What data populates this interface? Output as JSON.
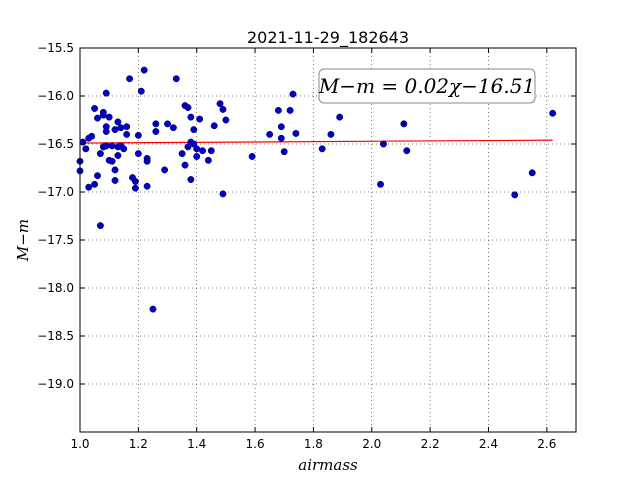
{
  "chart_data": {
    "type": "scatter",
    "title": "2021-11-29_182643",
    "xlabel": "airmass",
    "ylabel": "M−m",
    "xlim": [
      1.0,
      2.7
    ],
    "ylim": [
      -15.5,
      -19.5
    ],
    "y_inverted": true,
    "grid": true,
    "x_ticks": [
      1.0,
      1.2,
      1.4,
      1.6,
      1.8,
      2.0,
      2.2,
      2.4,
      2.6
    ],
    "x_tick_labels": [
      "1.0",
      "1.2",
      "1.4",
      "1.6",
      "1.8",
      "2.0",
      "2.2",
      "2.4",
      "2.6"
    ],
    "y_ticks": [
      -15.5,
      -16.0,
      -16.5,
      -17.0,
      -17.5,
      -18.0,
      -18.5,
      -19.0
    ],
    "y_tick_labels": [
      "−15.5",
      "−16.0",
      "−16.5",
      "−17.0",
      "−17.5",
      "−18.0",
      "−18.5",
      "−19.0"
    ],
    "annotation": "M−m = 0.02χ−16.51",
    "point_color": "#0000cc",
    "fit_color": "#ff0000",
    "fit_line": {
      "x": [
        1.0,
        2.62
      ],
      "y": [
        -16.49,
        -16.46
      ]
    },
    "points": [
      [
        1.0,
        -16.68
      ],
      [
        1.0,
        -16.78
      ],
      [
        1.01,
        -16.48
      ],
      [
        1.02,
        -16.55
      ],
      [
        1.03,
        -16.44
      ],
      [
        1.03,
        -16.95
      ],
      [
        1.04,
        -16.42
      ],
      [
        1.05,
        -16.13
      ],
      [
        1.05,
        -16.92
      ],
      [
        1.06,
        -16.23
      ],
      [
        1.06,
        -16.83
      ],
      [
        1.07,
        -16.6
      ],
      [
        1.07,
        -17.35
      ],
      [
        1.08,
        -16.53
      ],
      [
        1.08,
        -16.2
      ],
      [
        1.08,
        -16.17
      ],
      [
        1.09,
        -16.52
      ],
      [
        1.09,
        -16.32
      ],
      [
        1.09,
        -16.37
      ],
      [
        1.09,
        -15.97
      ],
      [
        1.1,
        -16.22
      ],
      [
        1.1,
        -16.67
      ],
      [
        1.11,
        -16.68
      ],
      [
        1.11,
        -16.52
      ],
      [
        1.12,
        -16.35
      ],
      [
        1.12,
        -16.77
      ],
      [
        1.12,
        -16.88
      ],
      [
        1.13,
        -16.27
      ],
      [
        1.13,
        -16.53
      ],
      [
        1.13,
        -16.62
      ],
      [
        1.14,
        -16.33
      ],
      [
        1.14,
        -16.52
      ],
      [
        1.15,
        -16.55
      ],
      [
        1.16,
        -16.4
      ],
      [
        1.16,
        -16.32
      ],
      [
        1.17,
        -15.82
      ],
      [
        1.18,
        -16.85
      ],
      [
        1.19,
        -16.89
      ],
      [
        1.19,
        -16.96
      ],
      [
        1.2,
        -16.6
      ],
      [
        1.2,
        -16.41
      ],
      [
        1.21,
        -15.95
      ],
      [
        1.22,
        -15.73
      ],
      [
        1.23,
        -16.65
      ],
      [
        1.23,
        -16.68
      ],
      [
        1.23,
        -16.94
      ],
      [
        1.25,
        -18.22
      ],
      [
        1.26,
        -16.29
      ],
      [
        1.26,
        -16.37
      ],
      [
        1.29,
        -16.77
      ],
      [
        1.3,
        -16.29
      ],
      [
        1.32,
        -16.33
      ],
      [
        1.33,
        -15.82
      ],
      [
        1.35,
        -16.6
      ],
      [
        1.36,
        -16.72
      ],
      [
        1.36,
        -16.1
      ],
      [
        1.37,
        -16.53
      ],
      [
        1.37,
        -16.12
      ],
      [
        1.38,
        -16.48
      ],
      [
        1.38,
        -16.87
      ],
      [
        1.38,
        -16.22
      ],
      [
        1.39,
        -16.35
      ],
      [
        1.39,
        -16.5
      ],
      [
        1.4,
        -16.63
      ],
      [
        1.4,
        -16.55
      ],
      [
        1.41,
        -16.24
      ],
      [
        1.42,
        -16.57
      ],
      [
        1.44,
        -16.67
      ],
      [
        1.45,
        -16.57
      ],
      [
        1.46,
        -16.31
      ],
      [
        1.48,
        -16.08
      ],
      [
        1.49,
        -16.14
      ],
      [
        1.49,
        -17.02
      ],
      [
        1.5,
        -16.25
      ],
      [
        1.59,
        -16.63
      ],
      [
        1.65,
        -16.4
      ],
      [
        1.68,
        -16.15
      ],
      [
        1.69,
        -16.44
      ],
      [
        1.69,
        -16.32
      ],
      [
        1.7,
        -16.58
      ],
      [
        1.72,
        -16.15
      ],
      [
        1.73,
        -15.98
      ],
      [
        1.74,
        -16.39
      ],
      [
        1.83,
        -16.55
      ],
      [
        1.86,
        -16.4
      ],
      [
        1.89,
        -16.22
      ],
      [
        2.03,
        -16.92
      ],
      [
        2.04,
        -16.5
      ],
      [
        2.11,
        -16.29
      ],
      [
        2.12,
        -16.57
      ],
      [
        2.49,
        -17.03
      ],
      [
        2.55,
        -16.8
      ],
      [
        2.62,
        -16.18
      ]
    ]
  }
}
